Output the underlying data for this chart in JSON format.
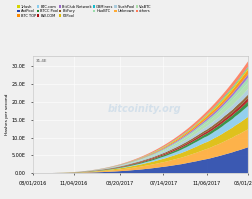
{
  "title": "",
  "ylabel": "Hashes per second",
  "background_color": "#f0f0f0",
  "watermark": "bitcoinity.org",
  "x_labels": [
    "08/01/2016",
    "11/04/2016",
    "03/20/2017",
    "07/14/2017",
    "11/06/2017",
    "05/01/2018"
  ],
  "x_ticks_pos": [
    0,
    16,
    34,
    51,
    68,
    84
  ],
  "n_points": 85,
  "ylim_top": 33,
  "yticks": [
    0,
    5,
    10,
    15,
    20,
    25,
    30
  ],
  "ytick_labels": [
    "0.00",
    "5.00E",
    "10.0E",
    "15.0E",
    "20.0E",
    "25.0E",
    "30.0E"
  ],
  "y_extra_tick": 31.4,
  "y_extra_label": "31.4E",
  "legend_rows": [
    [
      [
        "1Hash",
        "#d4d400"
      ],
      [
        "AntPool",
        "#2244aa"
      ],
      [
        "BTC TOP",
        "#ff8c00"
      ],
      [
        "BTC.com",
        "#88ccee"
      ],
      [
        "BTCC Pool",
        "#228833"
      ],
      [
        "BW.COM",
        "#aa1111"
      ]
    ],
    [
      [
        "BitClub Network",
        "#9966cc"
      ],
      [
        "BitFury",
        "#885522"
      ],
      [
        "F2Pool",
        "#ddbb00"
      ],
      [
        "GBMiners",
        "#11bbcc"
      ],
      [
        "HaoBTC",
        "#99ddaa"
      ],
      [
        "SlushPool",
        "#aaccdd"
      ]
    ],
    [
      [
        "Unknown",
        "#ffaa33"
      ],
      [
        "ViaBTC",
        "#aaddaa"
      ],
      [
        "others",
        "#ff7755"
      ]
    ]
  ],
  "pools": [
    "AntPool",
    "Unknown",
    "F2Pool",
    "BTC.com",
    "BTCC Pool",
    "BW.COM",
    "BitFury",
    "SlushPool",
    "ViaBTC",
    "HaoBTC",
    "BitClub Network",
    "BTC TOP",
    "1Hash",
    "GBMiners",
    "others"
  ],
  "colors": [
    "#2244aa",
    "#ffaa33",
    "#ddbb00",
    "#88ccee",
    "#228833",
    "#aa1111",
    "#885522",
    "#aaccdd",
    "#aaddaa",
    "#99ddaa",
    "#9966cc",
    "#ff8c00",
    "#d4d400",
    "#11bbcc",
    "#ff7755"
  ],
  "fractions_start": [
    0.22,
    0.2,
    0.15,
    0.01,
    0.08,
    0.06,
    0.07,
    0.08,
    0.0,
    0.03,
    0.02,
    0.0,
    0.02,
    0.02,
    0.04
  ],
  "fractions_end": [
    0.23,
    0.16,
    0.11,
    0.1,
    0.04,
    0.03,
    0.03,
    0.05,
    0.06,
    0.04,
    0.03,
    0.04,
    0.02,
    0.01,
    0.05
  ],
  "total_max": 31.4,
  "growth_power": 2.8,
  "seed": 7
}
